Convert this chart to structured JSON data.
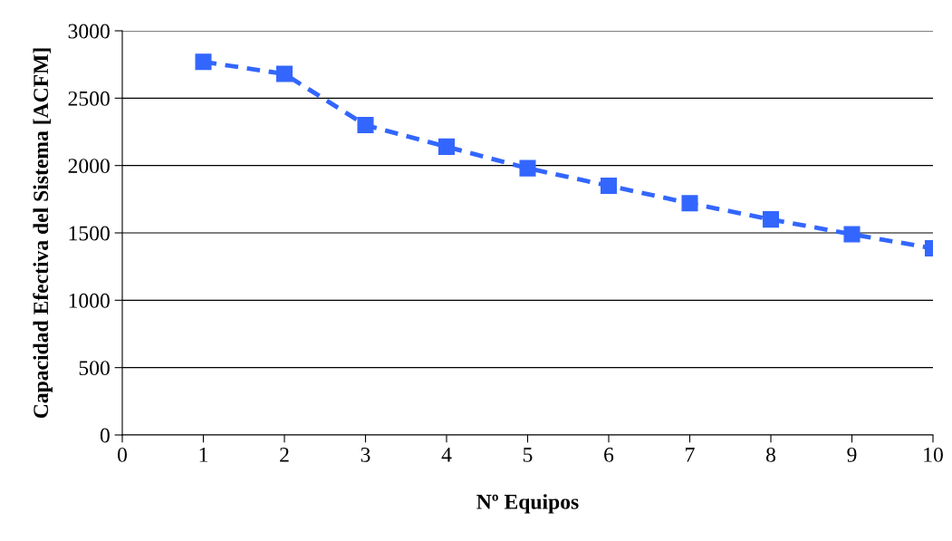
{
  "chart_data": {
    "type": "line",
    "xlabel": "Nº Equipos",
    "ylabel": "Capacidad Efectiva del Sistema [ACFM]",
    "x": [
      1,
      2,
      3,
      4,
      5,
      6,
      7,
      8,
      9,
      10
    ],
    "series": [
      {
        "color": "#3366ff",
        "values": [
          2770,
          2680,
          2300,
          2140,
          1980,
          1850,
          1720,
          1600,
          1490,
          1385
        ]
      }
    ],
    "xlim": [
      0,
      10
    ],
    "xticks": [
      0,
      1,
      2,
      3,
      4,
      5,
      6,
      7,
      8,
      9,
      10
    ],
    "ylim": [
      0,
      3000
    ],
    "yticks": [
      0,
      500,
      1000,
      1500,
      2000,
      2500,
      3000
    ],
    "grid": "y",
    "marker": "square",
    "line_style": "dashed",
    "legend": false
  }
}
